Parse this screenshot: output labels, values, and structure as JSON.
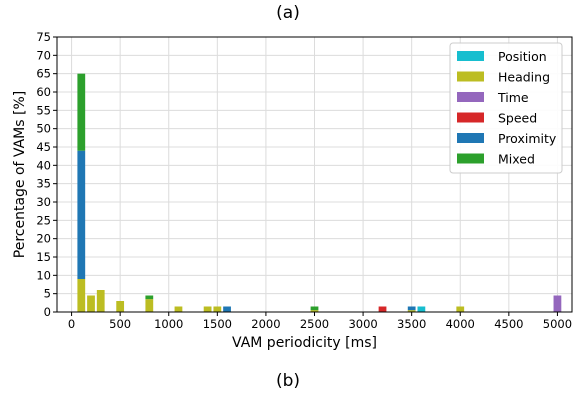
{
  "panel_labels": {
    "top": "(a)",
    "bottom": "(b)"
  },
  "chart_data": {
    "type": "bar",
    "stacked": true,
    "xlabel": "VAM periodicity [ms]",
    "ylabel": "Percentage of VAMs [%]",
    "xlim": [
      -150,
      5150
    ],
    "ylim": [
      0,
      75
    ],
    "xticks": [
      0,
      500,
      1000,
      1500,
      2000,
      2500,
      3000,
      3500,
      4000,
      4500,
      5000
    ],
    "yticks": [
      0,
      5,
      10,
      15,
      20,
      25,
      30,
      35,
      40,
      45,
      50,
      55,
      60,
      65,
      70,
      75
    ],
    "bar_width": 80,
    "grid": true,
    "legend_position": "top-right",
    "x": [
      100,
      200,
      300,
      500,
      800,
      1100,
      1400,
      1500,
      1600,
      2500,
      3200,
      3500,
      3600,
      4000,
      5000
    ],
    "series": [
      {
        "name": "Position",
        "color": "#17becf",
        "values": [
          0,
          0,
          0,
          0,
          0,
          0,
          0,
          0,
          0,
          0,
          0,
          0,
          1.5,
          0,
          0
        ]
      },
      {
        "name": "Heading",
        "color": "#bcbd22",
        "values": [
          9,
          4.5,
          6,
          3,
          3.5,
          1.5,
          1.5,
          1.5,
          0,
          0.5,
          0,
          0.5,
          0,
          1.5,
          0
        ]
      },
      {
        "name": "Time",
        "color": "#9467bd",
        "values": [
          0,
          0,
          0,
          0,
          0,
          0,
          0,
          0,
          0,
          0,
          0,
          0,
          0,
          0,
          4.5
        ]
      },
      {
        "name": "Speed",
        "color": "#d62728",
        "values": [
          0,
          0,
          0,
          0,
          0,
          0,
          0,
          0,
          0,
          0,
          1.5,
          0,
          0,
          0,
          0
        ]
      },
      {
        "name": "Proximity",
        "color": "#1f77b4",
        "values": [
          35,
          0,
          0,
          0,
          0,
          0,
          0,
          0,
          1.5,
          0,
          0,
          1,
          0,
          0,
          0
        ]
      },
      {
        "name": "Mixed",
        "color": "#2ca02c",
        "values": [
          21,
          0,
          0,
          0,
          1,
          0,
          0,
          0,
          0,
          1,
          0,
          0,
          0,
          0,
          0
        ]
      }
    ]
  }
}
